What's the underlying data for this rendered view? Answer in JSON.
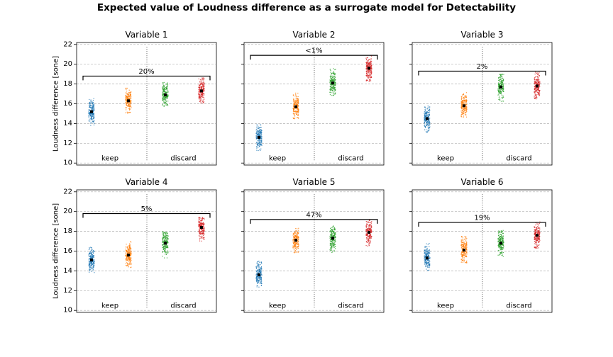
{
  "figure": {
    "title": "Expected value of Loudness difference as a surrogate model for Detectability",
    "ylabel": "Loudness difference [sone]"
  },
  "chart_data": [
    {
      "type": "scatter",
      "title": "Variable 1",
      "ylabel": "Loudness difference [sone]",
      "ylim": [
        9.8,
        22.2
      ],
      "yticks": [
        10,
        12,
        14,
        16,
        18,
        20,
        22
      ],
      "grid": true,
      "group_labels": [
        "keep",
        "discard"
      ],
      "annotation": "20%",
      "bracket_y": 18.8,
      "series": [
        {
          "color": "#1f77b4",
          "mean": 15.2,
          "min": 13.8,
          "max": 16.6
        },
        {
          "color": "#ff7f0e",
          "mean": 16.3,
          "min": 15.0,
          "max": 17.6
        },
        {
          "color": "#2ca02c",
          "mean": 16.9,
          "min": 15.6,
          "max": 18.2
        },
        {
          "color": "#d62728",
          "mean": 17.3,
          "min": 16.0,
          "max": 18.7
        }
      ]
    },
    {
      "type": "scatter",
      "title": "Variable 2",
      "ylabel": "",
      "ylim": [
        9.8,
        22.2
      ],
      "yticks": [
        10,
        12,
        14,
        16,
        18,
        20,
        22
      ],
      "grid": true,
      "group_labels": [
        "keep",
        "discard"
      ],
      "annotation": "<1%",
      "bracket_y": 20.9,
      "series": [
        {
          "color": "#1f77b4",
          "mean": 12.6,
          "min": 11.2,
          "max": 13.9
        },
        {
          "color": "#ff7f0e",
          "mean": 15.7,
          "min": 14.4,
          "max": 17.1
        },
        {
          "color": "#2ca02c",
          "mean": 18.1,
          "min": 16.8,
          "max": 19.6
        },
        {
          "color": "#d62728",
          "mean": 19.6,
          "min": 18.2,
          "max": 20.9
        }
      ]
    },
    {
      "type": "scatter",
      "title": "Variable 3",
      "ylabel": "",
      "ylim": [
        9.8,
        22.2
      ],
      "yticks": [
        10,
        12,
        14,
        16,
        18,
        20,
        22
      ],
      "grid": true,
      "group_labels": [
        "keep",
        "discard"
      ],
      "annotation": "2%",
      "bracket_y": 19.3,
      "series": [
        {
          "color": "#1f77b4",
          "mean": 14.5,
          "min": 13.1,
          "max": 15.8
        },
        {
          "color": "#ff7f0e",
          "mean": 15.8,
          "min": 14.6,
          "max": 17.3
        },
        {
          "color": "#2ca02c",
          "mean": 17.7,
          "min": 16.2,
          "max": 19.0
        },
        {
          "color": "#d62728",
          "mean": 17.8,
          "min": 16.3,
          "max": 19.2
        }
      ]
    },
    {
      "type": "scatter",
      "title": "Variable 4",
      "ylabel": "Loudness difference [sone]",
      "ylim": [
        9.8,
        22.2
      ],
      "yticks": [
        10,
        12,
        14,
        16,
        18,
        20,
        22
      ],
      "grid": true,
      "group_labels": [
        "keep",
        "discard"
      ],
      "annotation": "5%",
      "bracket_y": 19.8,
      "series": [
        {
          "color": "#1f77b4",
          "mean": 15.1,
          "min": 13.8,
          "max": 16.5
        },
        {
          "color": "#ff7f0e",
          "mean": 15.6,
          "min": 14.3,
          "max": 17.0
        },
        {
          "color": "#2ca02c",
          "mean": 16.8,
          "min": 15.3,
          "max": 18.0
        },
        {
          "color": "#d62728",
          "mean": 18.4,
          "min": 17.0,
          "max": 19.5
        }
      ]
    },
    {
      "type": "scatter",
      "title": "Variable 5",
      "ylabel": "",
      "ylim": [
        9.8,
        22.2
      ],
      "yticks": [
        10,
        12,
        14,
        16,
        18,
        20,
        22
      ],
      "grid": true,
      "group_labels": [
        "keep",
        "discard"
      ],
      "annotation": "47%",
      "bracket_y": 19.2,
      "series": [
        {
          "color": "#1f77b4",
          "mean": 13.6,
          "min": 12.3,
          "max": 15.0
        },
        {
          "color": "#ff7f0e",
          "mean": 17.1,
          "min": 15.8,
          "max": 18.4
        },
        {
          "color": "#2ca02c",
          "mean": 17.3,
          "min": 15.8,
          "max": 18.6
        },
        {
          "color": "#d62728",
          "mean": 17.9,
          "min": 16.5,
          "max": 19.2
        }
      ]
    },
    {
      "type": "scatter",
      "title": "Variable 6",
      "ylabel": "",
      "ylim": [
        9.8,
        22.2
      ],
      "yticks": [
        10,
        12,
        14,
        16,
        18,
        20,
        22
      ],
      "grid": true,
      "group_labels": [
        "keep",
        "discard"
      ],
      "annotation": "19%",
      "bracket_y": 18.9,
      "series": [
        {
          "color": "#1f77b4",
          "mean": 15.3,
          "min": 14.0,
          "max": 16.8
        },
        {
          "color": "#ff7f0e",
          "mean": 16.1,
          "min": 14.8,
          "max": 17.5
        },
        {
          "color": "#2ca02c",
          "mean": 16.8,
          "min": 15.4,
          "max": 18.1
        },
        {
          "color": "#d62728",
          "mean": 17.6,
          "min": 16.3,
          "max": 19.0
        }
      ]
    }
  ]
}
